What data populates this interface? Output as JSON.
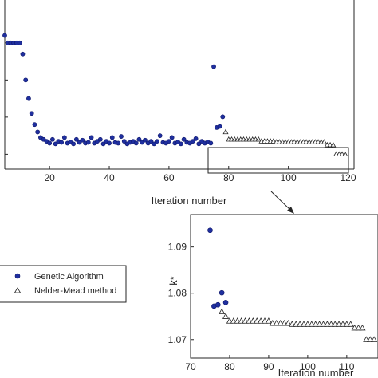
{
  "chart_data": [
    {
      "type": "scatter",
      "title": "",
      "xlabel": "Iteration number",
      "ylabel": "",
      "xlim": [
        5,
        122
      ],
      "ylim": [
        1.066,
        1.112
      ],
      "xticks": [
        20,
        40,
        60,
        80,
        100,
        120
      ],
      "grid": false,
      "series": [
        {
          "name": "Genetic Algorithm",
          "marker": "circle",
          "color": "#1f2f9f",
          "x": [
            1,
            2,
            3,
            4,
            5,
            6,
            7,
            8,
            9,
            10,
            11,
            12,
            13,
            14,
            15,
            16,
            17,
            18,
            19,
            20,
            21,
            22,
            23,
            24,
            25,
            26,
            27,
            28,
            29,
            30,
            31,
            32,
            33,
            34,
            35,
            36,
            37,
            38,
            39,
            40,
            41,
            42,
            43,
            44,
            45,
            46,
            47,
            48,
            49,
            50,
            51,
            52,
            53,
            54,
            55,
            56,
            57,
            58,
            59,
            60,
            61,
            62,
            63,
            64,
            65,
            66,
            67,
            68,
            69,
            70,
            71,
            72,
            73,
            74,
            75,
            76,
            77,
            78
          ],
          "y": [
            1.11,
            1.108,
            1.106,
            1.104,
            1.102,
            1.1,
            1.1,
            1.1,
            1.1,
            1.1,
            1.097,
            1.09,
            1.085,
            1.081,
            1.078,
            1.076,
            1.0745,
            1.074,
            1.0735,
            1.073,
            1.074,
            1.0728,
            1.0735,
            1.0732,
            1.0745,
            1.073,
            1.0733,
            1.0728,
            1.074,
            1.0732,
            1.0738,
            1.073,
            1.0732,
            1.0745,
            1.073,
            1.0735,
            1.074,
            1.0728,
            1.0735,
            1.073,
            1.0745,
            1.0732,
            1.073,
            1.0748,
            1.0735,
            1.0728,
            1.0732,
            1.0735,
            1.073,
            1.074,
            1.0732,
            1.0738,
            1.073,
            1.0735,
            1.0728,
            1.0735,
            1.075,
            1.0732,
            1.073,
            1.0735,
            1.0745,
            1.073,
            1.0733,
            1.0728,
            1.074,
            1.0732,
            1.073,
            1.0735,
            1.0742,
            1.0728,
            1.0735,
            1.073,
            1.0733,
            1.073,
            1.0936,
            1.0772,
            1.0775,
            1.0801
          ]
        },
        {
          "name": "Nelder-Mead method",
          "marker": "triangle",
          "color": "#ffffff",
          "x": [
            79,
            80,
            81,
            82,
            83,
            84,
            85,
            86,
            87,
            88,
            89,
            90,
            91,
            92,
            93,
            94,
            95,
            96,
            97,
            98,
            99,
            100,
            101,
            102,
            103,
            104,
            105,
            106,
            107,
            108,
            109,
            110,
            111,
            112,
            113,
            114,
            115,
            116,
            117,
            118,
            119
          ],
          "y": [
            1.076,
            1.074,
            1.074,
            1.074,
            1.074,
            1.074,
            1.074,
            1.074,
            1.074,
            1.074,
            1.074,
            1.074,
            1.0735,
            1.0735,
            1.0735,
            1.0735,
            1.0735,
            1.0733,
            1.0733,
            1.0733,
            1.0733,
            1.0733,
            1.0733,
            1.0733,
            1.0733,
            1.0733,
            1.0733,
            1.0733,
            1.0733,
            1.0733,
            1.0733,
            1.0733,
            1.0733,
            1.0733,
            1.0725,
            1.0725,
            1.0725,
            1.07,
            1.07,
            1.07,
            1.07
          ]
        }
      ]
    },
    {
      "type": "scatter",
      "title": "",
      "xlabel": "Iteration number",
      "ylabel": "k*",
      "xlim": [
        70,
        118
      ],
      "ylim": [
        1.066,
        1.097
      ],
      "xticks": [
        70,
        80,
        90,
        100,
        110
      ],
      "yticks": [
        1.07,
        1.08,
        1.09
      ],
      "grid": false,
      "series": [
        {
          "name": "Genetic Algorithm",
          "marker": "circle",
          "x": [
            75,
            76,
            77,
            78,
            79
          ],
          "y": [
            1.0936,
            1.0772,
            1.0775,
            1.0801,
            1.078
          ]
        },
        {
          "name": "Nelder-Mead method",
          "marker": "triangle",
          "x": [
            78,
            79,
            80,
            81,
            82,
            83,
            84,
            85,
            86,
            87,
            88,
            89,
            90,
            91,
            92,
            93,
            94,
            95,
            96,
            97,
            98,
            99,
            100,
            101,
            102,
            103,
            104,
            105,
            106,
            107,
            108,
            109,
            110,
            111,
            112,
            113,
            114,
            115,
            116,
            117
          ],
          "y": [
            1.076,
            1.075,
            1.074,
            1.074,
            1.074,
            1.074,
            1.074,
            1.074,
            1.074,
            1.074,
            1.074,
            1.074,
            1.074,
            1.0735,
            1.0735,
            1.0735,
            1.0735,
            1.0735,
            1.0733,
            1.0733,
            1.0733,
            1.0733,
            1.0733,
            1.0733,
            1.0733,
            1.0733,
            1.0733,
            1.0733,
            1.0733,
            1.0733,
            1.0733,
            1.0733,
            1.0733,
            1.0733,
            1.0725,
            1.0725,
            1.0725,
            1.07,
            1.07,
            1.07
          ]
        }
      ]
    }
  ],
  "legend": {
    "items": [
      {
        "label": "Genetic Algorithm",
        "marker": "circle"
      },
      {
        "label": "Nelder-Mead method",
        "marker": "triangle"
      }
    ]
  }
}
